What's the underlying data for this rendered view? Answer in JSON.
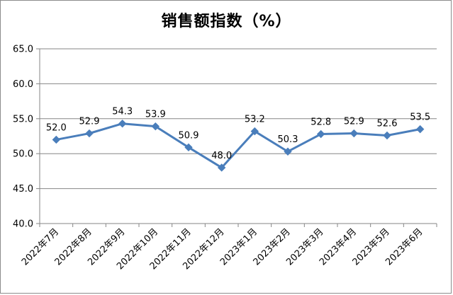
{
  "chart_data": {
    "type": "line",
    "title": "销售额指数（%）",
    "xlabel": "",
    "ylabel": "",
    "categories": [
      "2022年7月",
      "2022年8月",
      "2022年9月",
      "2022年10月",
      "2022年11月",
      "2022年12月",
      "2023年1月",
      "2023年2月",
      "2023年3月",
      "2023年4月",
      "2023年5月",
      "2023年6月"
    ],
    "series": [
      {
        "values": [
          52.0,
          52.9,
          54.3,
          53.9,
          50.9,
          48.0,
          53.2,
          50.3,
          52.8,
          52.9,
          52.6,
          53.5
        ]
      }
    ],
    "ylim": [
      40.0,
      65.0
    ],
    "yticks": [
      "40.0",
      "45.0",
      "50.0",
      "55.0",
      "60.0",
      "65.0"
    ],
    "data_labels": [
      "52.0",
      "52.9",
      "54.3",
      "53.9",
      "50.9",
      "48.0",
      "53.2",
      "50.3",
      "52.8",
      "52.9",
      "52.6",
      "53.5"
    ],
    "grid": true,
    "legend": "none",
    "line_color": "#4a7ebb",
    "grid_color": "#868686"
  }
}
